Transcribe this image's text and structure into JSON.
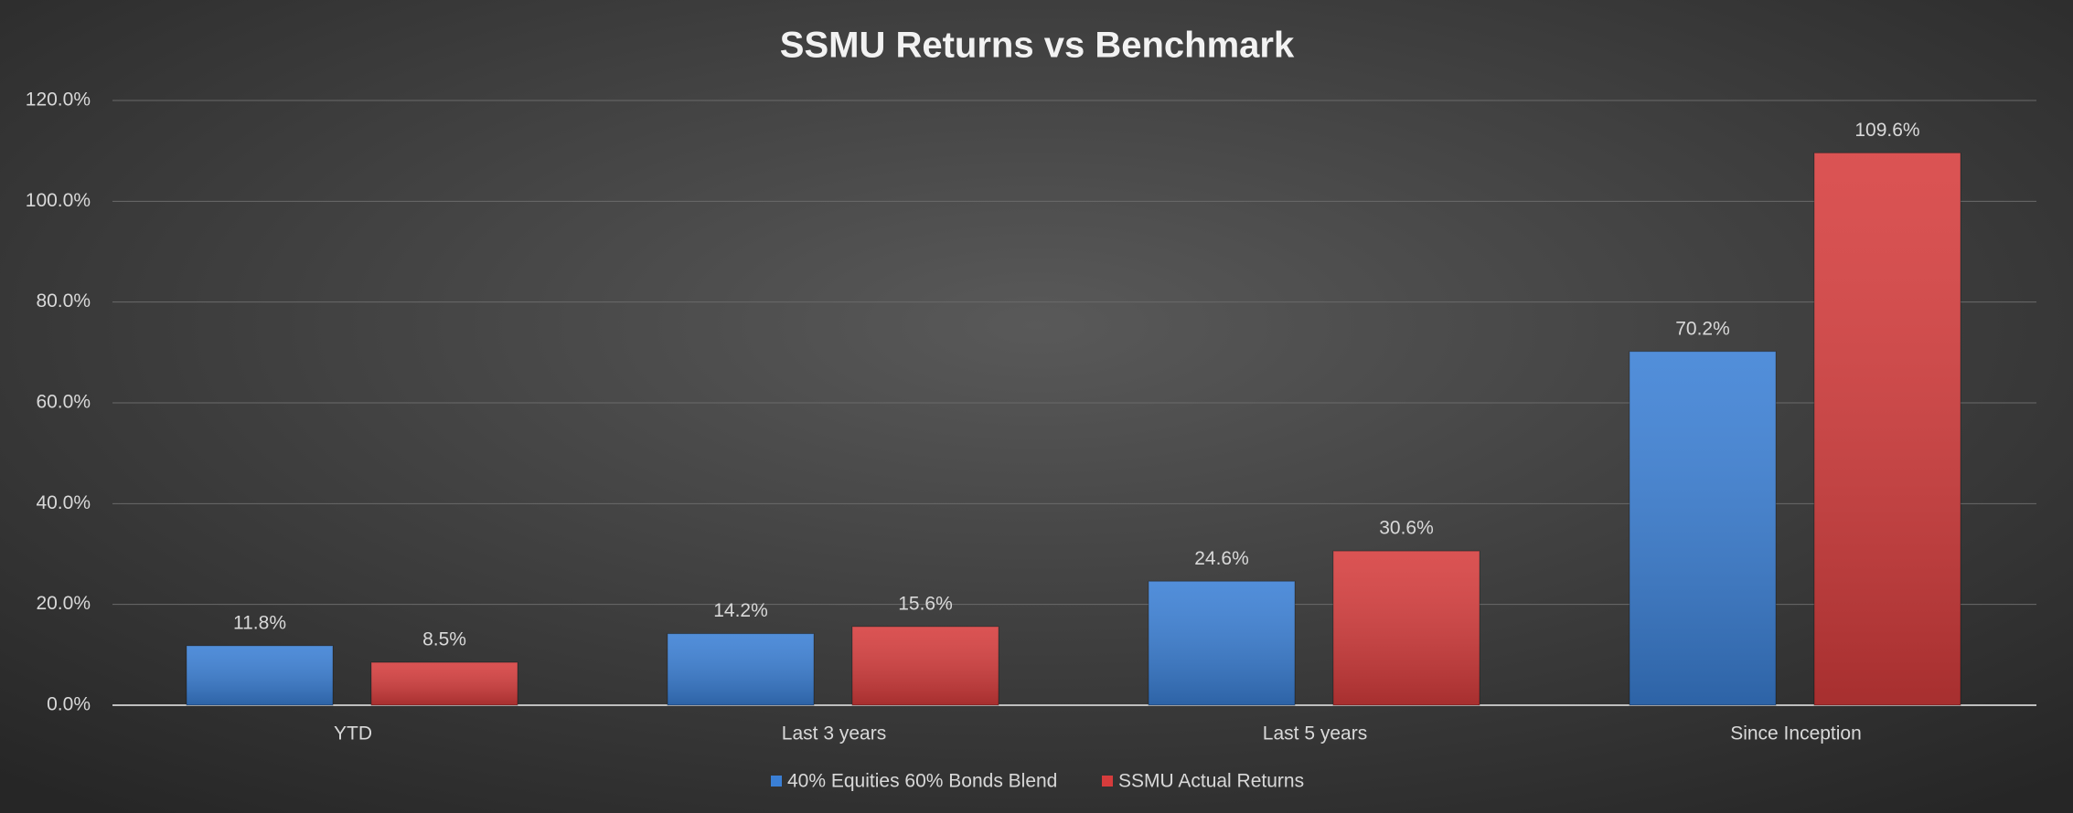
{
  "chart_data": {
    "type": "bar",
    "title": "SSMU Returns vs Benchmark",
    "categories": [
      "YTD",
      "Last 3 years",
      "Last 5 years",
      "Since Inception"
    ],
    "series": [
      {
        "name": "40% Equities 60% Bonds Blend",
        "color": "#3a7fd5",
        "values": [
          11.8,
          14.2,
          24.6,
          70.2
        ],
        "value_labels": [
          "11.8%",
          "14.2%",
          "24.6%",
          "70.2%"
        ]
      },
      {
        "name": "SSMU Actual Returns",
        "color": "#d63c3c",
        "values": [
          8.5,
          15.6,
          30.6,
          109.6
        ],
        "value_labels": [
          "8.5%",
          "15.6%",
          "30.6%",
          "109.6%"
        ]
      }
    ],
    "ylim": [
      0,
      120
    ],
    "yticks": [
      {
        "value": 0,
        "label": "0.0%"
      },
      {
        "value": 20,
        "label": "20.0%"
      },
      {
        "value": 40,
        "label": "40.0%"
      },
      {
        "value": 60,
        "label": "60.0%"
      },
      {
        "value": 80,
        "label": "80.0%"
      },
      {
        "value": 100,
        "label": "100.0%"
      },
      {
        "value": 120,
        "label": "120.0%"
      }
    ],
    "grid": true,
    "legend": "bottom"
  }
}
